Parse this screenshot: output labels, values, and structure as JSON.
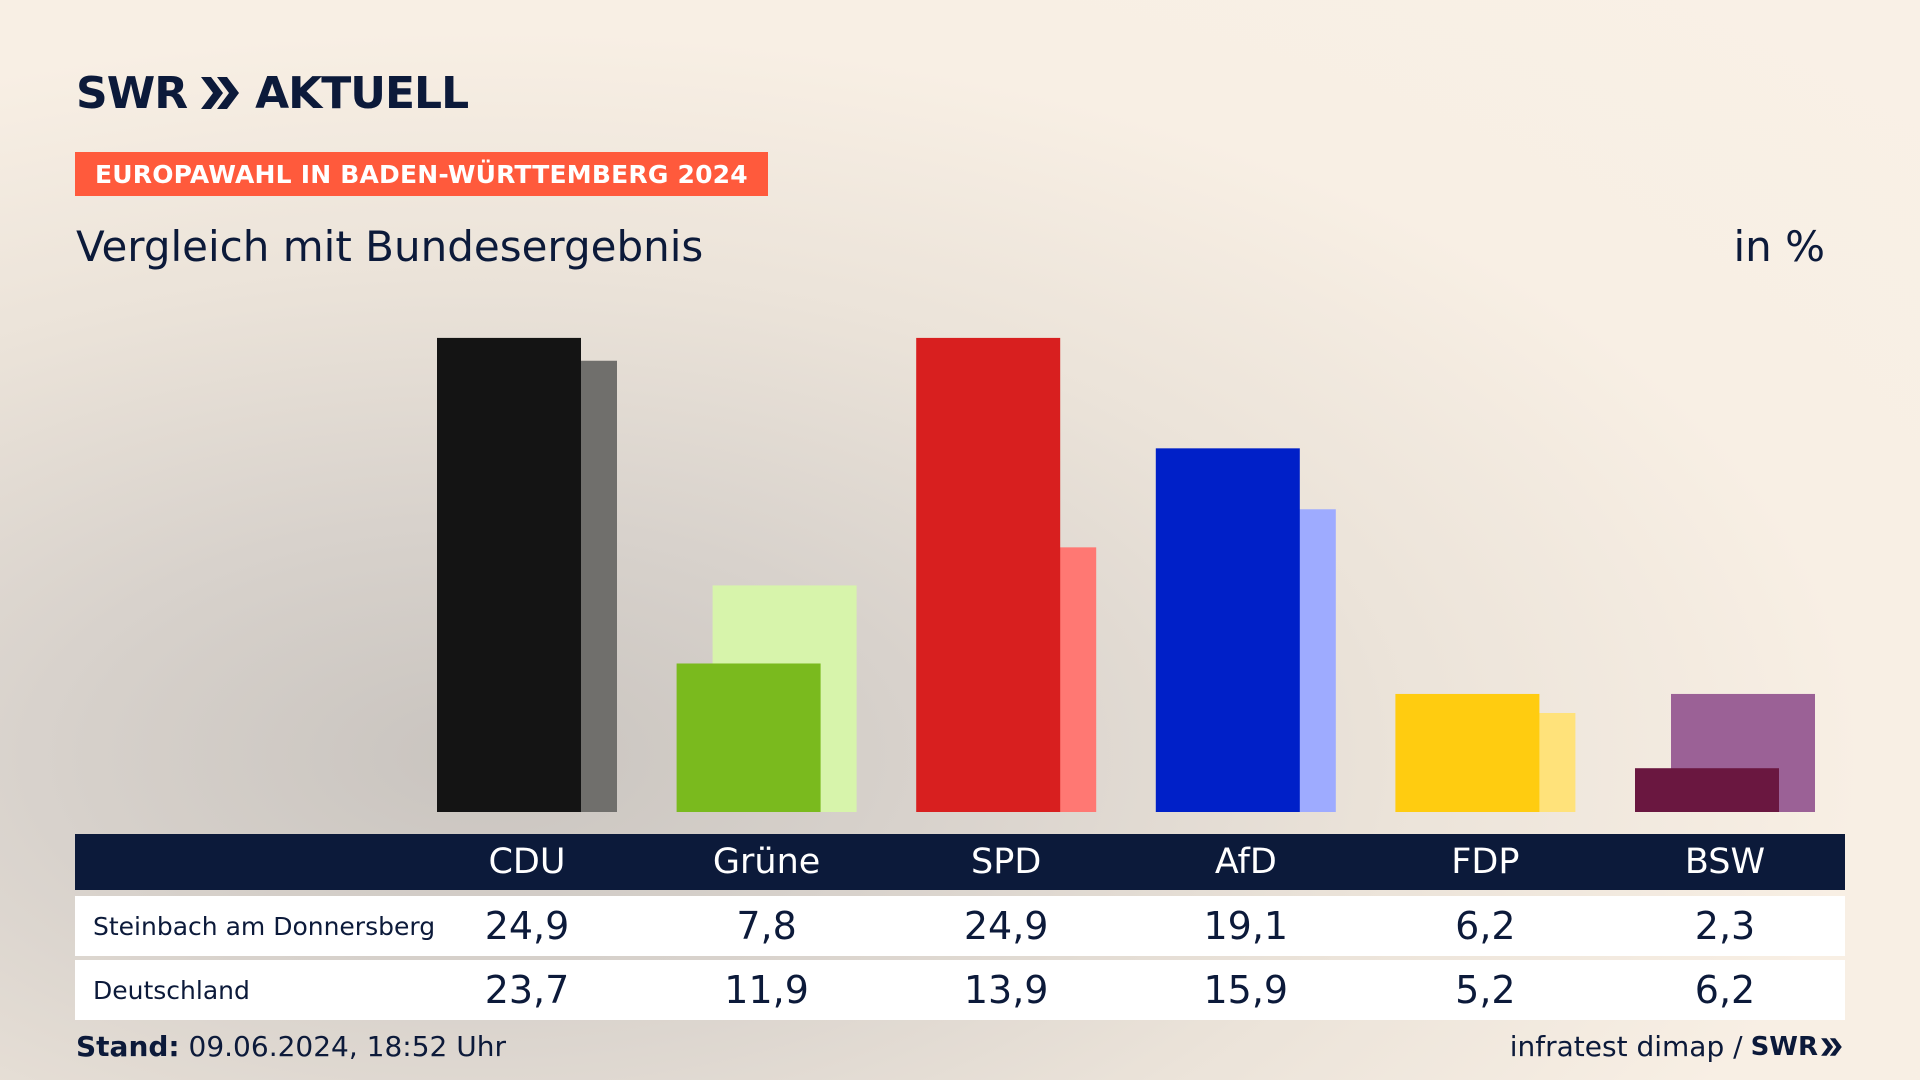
{
  "header": {
    "logo_text": "SWR",
    "logo_suffix": "AKTUELL",
    "tag": "EUROPAWAHL IN BADEN-WÜRTTEMBERG 2024",
    "subtitle": "Vergleich mit Bundesergebnis",
    "unit": "in %"
  },
  "colors": {
    "navy": "#0c1a3a",
    "tag": "#ff5a3c"
  },
  "chart_data": {
    "type": "bar",
    "categories": [
      "CDU",
      "Grüne",
      "SPD",
      "AfD",
      "FDP",
      "BSW"
    ],
    "series": [
      {
        "name": "Steinbach am Donnersberg",
        "values": [
          24.9,
          7.8,
          24.9,
          19.1,
          6.2,
          2.3
        ],
        "colors": [
          "#141414",
          "#7aba1e",
          "#d81f1f",
          "#0020c8",
          "#ffcc10",
          "#6a1740"
        ]
      },
      {
        "name": "Deutschland",
        "values": [
          23.7,
          11.9,
          13.9,
          15.9,
          5.2,
          6.2
        ],
        "colors": [
          "#706f6c",
          "#d7f4ab",
          "#ff7873",
          "#9eabff",
          "#ffe27a",
          "#9b6196"
        ]
      }
    ],
    "ylim": [
      0,
      25
    ]
  },
  "table": {
    "rows": [
      {
        "label": "Steinbach am Donnersberg",
        "values": [
          "24,9",
          "7,8",
          "24,9",
          "19,1",
          "6,2",
          "2,3"
        ]
      },
      {
        "label": "Deutschland",
        "values": [
          "23,7",
          "11,9",
          "13,9",
          "15,9",
          "5,2",
          "6,2"
        ]
      }
    ]
  },
  "footer": {
    "stand_label": "Stand:",
    "stand_value": "09.06.2024, 18:52 Uhr",
    "source": "infratest dimap /",
    "source_logo": "SWR"
  }
}
